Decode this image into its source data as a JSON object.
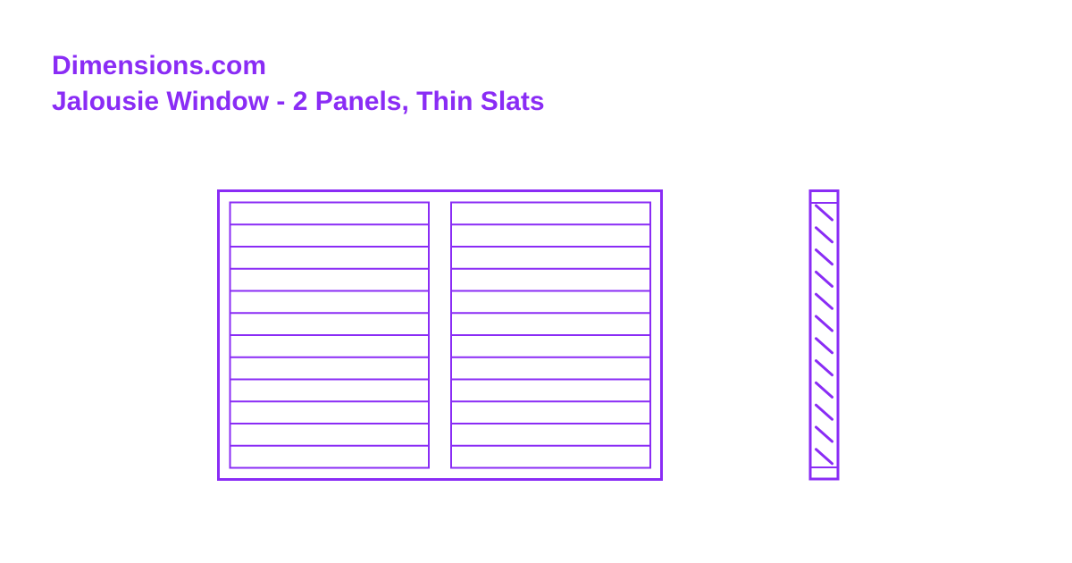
{
  "header": {
    "site": "Dimensions.com",
    "title": "Jalousie Window - 2 Panels, Thin Slats"
  },
  "drawing": {
    "stroke_color": "#8a2cf5",
    "panels": 2,
    "slats_per_panel": 12,
    "side_view_slats": 12
  }
}
